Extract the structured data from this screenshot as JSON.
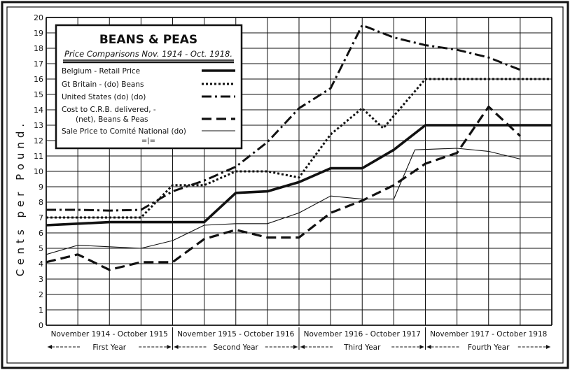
{
  "chart_data": {
    "type": "line",
    "title": "BEANS & PEAS",
    "subtitle": "Price Comparisons Nov. 1914 - Oct. 1918.",
    "ylabel": "Cents per Pound.",
    "xlabel": "",
    "ylim": [
      0,
      20
    ],
    "yticks": [
      "0",
      "1",
      "2",
      "3",
      "4",
      "5",
      "6",
      "7",
      "8",
      "9",
      "10",
      "11",
      "12",
      "13",
      "14",
      "15",
      "16",
      "17",
      "18",
      "19",
      "20"
    ],
    "grid": true,
    "legend_position": "top-left",
    "x": [
      0,
      1,
      2,
      3,
      4,
      5,
      6,
      7,
      8,
      9,
      10,
      11,
      12,
      13,
      14,
      15,
      16,
      17,
      18,
      19,
      20,
      21,
      22,
      23,
      24,
      25,
      26,
      27,
      28,
      29,
      30,
      31,
      32,
      33,
      34,
      35,
      36,
      37,
      38,
      39,
      40,
      41,
      42,
      43,
      44,
      45,
      46,
      47,
      48
    ],
    "period_labels": [
      "November 1914 - October 1915",
      "November 1915 - October 1916",
      "November 1916 - October 1917",
      "November 1917 - October 1918"
    ],
    "year_labels": [
      "First Year",
      "Second Year",
      "Third Year",
      "Fourth Year"
    ],
    "series": [
      {
        "name": "Belgium - Retail Price",
        "style": "thick-solid",
        "points": [
          [
            0,
            6.5
          ],
          [
            3,
            6.6
          ],
          [
            6,
            6.7
          ],
          [
            9,
            6.7
          ],
          [
            12,
            6.7
          ],
          [
            15,
            6.7
          ],
          [
            18,
            8.6
          ],
          [
            21,
            8.7
          ],
          [
            24,
            9.3
          ],
          [
            27,
            10.2
          ],
          [
            30,
            10.2
          ],
          [
            33,
            11.4
          ],
          [
            36,
            13.0
          ],
          [
            39,
            13.0
          ],
          [
            42,
            13.0
          ],
          [
            45,
            13.0
          ],
          [
            48,
            13.0
          ]
        ]
      },
      {
        "name": "Gt Britain - (do) Beans",
        "style": "dotted",
        "points": [
          [
            0,
            7.0
          ],
          [
            3,
            7.0
          ],
          [
            6,
            7.0
          ],
          [
            9,
            7.0
          ],
          [
            12,
            9.1
          ],
          [
            15,
            9.1
          ],
          [
            18,
            10.0
          ],
          [
            21,
            10.0
          ],
          [
            24,
            9.6
          ],
          [
            27,
            12.4
          ],
          [
            30,
            14.1
          ],
          [
            32,
            12.8
          ],
          [
            36,
            16.0
          ],
          [
            39,
            16.0
          ],
          [
            42,
            16.0
          ],
          [
            45,
            16.0
          ],
          [
            48,
            16.0
          ]
        ]
      },
      {
        "name": "United States (do) (do)",
        "style": "dash-dot",
        "points": [
          [
            0,
            7.5
          ],
          [
            3,
            7.5
          ],
          [
            6,
            7.45
          ],
          [
            9,
            7.5
          ],
          [
            12,
            8.7
          ],
          [
            15,
            9.4
          ],
          [
            18,
            10.3
          ],
          [
            21,
            11.9
          ],
          [
            24,
            14.1
          ],
          [
            27,
            15.4
          ],
          [
            30,
            19.5
          ],
          [
            33,
            18.7
          ],
          [
            36,
            18.2
          ],
          [
            39,
            17.9
          ],
          [
            42,
            17.4
          ],
          [
            45,
            16.6
          ]
        ]
      },
      {
        "name": "Cost to C.R.B. delivered, - (net), Beans & Peas",
        "style": "long-dash",
        "points": [
          [
            0,
            4.1
          ],
          [
            3,
            4.6
          ],
          [
            6,
            3.6
          ],
          [
            9,
            4.1
          ],
          [
            12,
            4.1
          ],
          [
            15,
            5.6
          ],
          [
            18,
            6.2
          ],
          [
            21,
            5.7
          ],
          [
            24,
            5.7
          ],
          [
            27,
            7.3
          ],
          [
            30,
            8.1
          ],
          [
            33,
            9.1
          ],
          [
            36,
            10.5
          ],
          [
            39,
            11.2
          ],
          [
            42,
            14.2
          ],
          [
            45,
            12.3
          ]
        ]
      },
      {
        "name": "Sale Price to Comité National (do)",
        "style": "thin-solid",
        "points": [
          [
            0,
            4.6
          ],
          [
            3,
            5.2
          ],
          [
            6,
            5.1
          ],
          [
            9,
            5.0
          ],
          [
            12,
            5.5
          ],
          [
            15,
            6.5
          ],
          [
            18,
            6.6
          ],
          [
            21,
            6.6
          ],
          [
            24,
            7.3
          ],
          [
            27,
            8.4
          ],
          [
            30,
            8.2
          ],
          [
            33,
            8.2
          ],
          [
            35,
            11.4
          ],
          [
            39,
            11.5
          ],
          [
            42,
            11.3
          ],
          [
            45,
            10.8
          ]
        ]
      }
    ],
    "legend_extra": "=|="
  }
}
